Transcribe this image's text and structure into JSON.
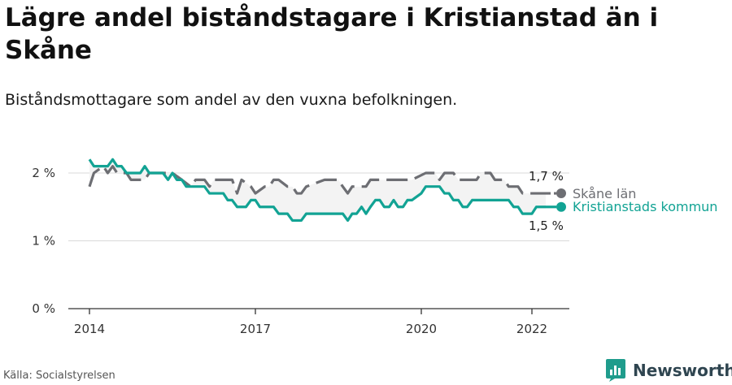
{
  "title": "Lägre andel biståndstagare i Kristianstad än i Skåne",
  "subtitle": "Biståndsmottagare som andel av den vuxna befolkningen.",
  "source": "Källa: Socialstyrelsen",
  "logo": {
    "text": "Newsworthy",
    "icon": "newsworthy-logo-icon"
  },
  "colors": {
    "kristianstad": "#12a394",
    "skane": "#6d6e73",
    "grid": "#d9d9d9",
    "axis": "#333333"
  },
  "chart_data": {
    "type": "line",
    "x_ticks": [
      2014,
      2017,
      2020,
      2022
    ],
    "y_ticks": [
      0,
      1,
      2
    ],
    "y_tick_labels": [
      "0 %",
      "1 %",
      "2 %"
    ],
    "ylim": [
      0,
      2.4
    ],
    "xlim": [
      2013.6,
      2022.7
    ],
    "grid": "horizontal",
    "series": [
      {
        "name": "Skåne län",
        "style": "dashed",
        "end_label": "1,7 %",
        "points": [
          [
            2014.0,
            1.8
          ],
          [
            2014.08,
            2.0
          ],
          [
            2014.25,
            2.1
          ],
          [
            2014.33,
            2.0
          ],
          [
            2014.42,
            2.1
          ],
          [
            2014.5,
            2.0
          ],
          [
            2014.67,
            2.0
          ],
          [
            2014.75,
            1.9
          ],
          [
            2015.0,
            1.9
          ],
          [
            2015.08,
            2.0
          ],
          [
            2015.5,
            2.0
          ],
          [
            2015.67,
            1.9
          ],
          [
            2015.83,
            1.8
          ],
          [
            2015.92,
            1.9
          ],
          [
            2016.08,
            1.9
          ],
          [
            2016.17,
            1.8
          ],
          [
            2016.25,
            1.9
          ],
          [
            2016.58,
            1.9
          ],
          [
            2016.67,
            1.7
          ],
          [
            2016.75,
            1.9
          ],
          [
            2016.92,
            1.8
          ],
          [
            2017.0,
            1.7
          ],
          [
            2017.17,
            1.8
          ],
          [
            2017.25,
            1.8
          ],
          [
            2017.33,
            1.9
          ],
          [
            2017.42,
            1.9
          ],
          [
            2017.58,
            1.8
          ],
          [
            2017.67,
            1.8
          ],
          [
            2017.75,
            1.7
          ],
          [
            2017.83,
            1.7
          ],
          [
            2017.92,
            1.8
          ],
          [
            2018.25,
            1.9
          ],
          [
            2018.5,
            1.9
          ],
          [
            2018.58,
            1.8
          ],
          [
            2018.67,
            1.7
          ],
          [
            2018.75,
            1.8
          ],
          [
            2018.92,
            1.8
          ],
          [
            2019.0,
            1.8
          ],
          [
            2019.08,
            1.9
          ],
          [
            2019.83,
            1.9
          ],
          [
            2020.08,
            2.0
          ],
          [
            2020.25,
            2.0
          ],
          [
            2020.33,
            1.9
          ],
          [
            2020.42,
            2.0
          ],
          [
            2020.58,
            2.0
          ],
          [
            2020.67,
            1.9
          ],
          [
            2021.0,
            1.9
          ],
          [
            2021.08,
            2.0
          ],
          [
            2021.25,
            2.0
          ],
          [
            2021.33,
            1.9
          ],
          [
            2021.5,
            1.9
          ],
          [
            2021.58,
            1.8
          ],
          [
            2021.75,
            1.8
          ],
          [
            2021.83,
            1.7
          ],
          [
            2022.25,
            1.7
          ]
        ]
      },
      {
        "name": "Kristianstads kommun",
        "style": "solid",
        "end_label": "1,5 %",
        "points": [
          [
            2014.0,
            2.2
          ],
          [
            2014.08,
            2.1
          ],
          [
            2014.33,
            2.1
          ],
          [
            2014.42,
            2.2
          ],
          [
            2014.5,
            2.1
          ],
          [
            2014.58,
            2.1
          ],
          [
            2014.67,
            2.0
          ],
          [
            2014.92,
            2.0
          ],
          [
            2015.0,
            2.1
          ],
          [
            2015.08,
            2.0
          ],
          [
            2015.33,
            2.0
          ],
          [
            2015.42,
            1.9
          ],
          [
            2015.5,
            2.0
          ],
          [
            2015.58,
            1.9
          ],
          [
            2015.67,
            1.9
          ],
          [
            2015.75,
            1.8
          ],
          [
            2016.08,
            1.8
          ],
          [
            2016.17,
            1.7
          ],
          [
            2016.42,
            1.7
          ],
          [
            2016.5,
            1.6
          ],
          [
            2016.58,
            1.6
          ],
          [
            2016.67,
            1.5
          ],
          [
            2016.83,
            1.5
          ],
          [
            2016.92,
            1.6
          ],
          [
            2017.0,
            1.6
          ],
          [
            2017.08,
            1.5
          ],
          [
            2017.33,
            1.5
          ],
          [
            2017.42,
            1.4
          ],
          [
            2017.58,
            1.4
          ],
          [
            2017.67,
            1.3
          ],
          [
            2017.83,
            1.3
          ],
          [
            2017.92,
            1.4
          ],
          [
            2018.58,
            1.4
          ],
          [
            2018.67,
            1.3
          ],
          [
            2018.75,
            1.4
          ],
          [
            2018.83,
            1.4
          ],
          [
            2018.92,
            1.5
          ],
          [
            2019.0,
            1.4
          ],
          [
            2019.08,
            1.5
          ],
          [
            2019.17,
            1.6
          ],
          [
            2019.25,
            1.6
          ],
          [
            2019.33,
            1.5
          ],
          [
            2019.42,
            1.5
          ],
          [
            2019.5,
            1.6
          ],
          [
            2019.58,
            1.5
          ],
          [
            2019.67,
            1.5
          ],
          [
            2019.75,
            1.6
          ],
          [
            2019.83,
            1.6
          ],
          [
            2020.0,
            1.7
          ],
          [
            2020.08,
            1.8
          ],
          [
            2020.33,
            1.8
          ],
          [
            2020.42,
            1.7
          ],
          [
            2020.5,
            1.7
          ],
          [
            2020.58,
            1.6
          ],
          [
            2020.67,
            1.6
          ],
          [
            2020.75,
            1.5
          ],
          [
            2020.83,
            1.5
          ],
          [
            2020.92,
            1.6
          ],
          [
            2021.58,
            1.6
          ],
          [
            2021.67,
            1.5
          ],
          [
            2021.75,
            1.5
          ],
          [
            2021.83,
            1.4
          ],
          [
            2022.0,
            1.4
          ],
          [
            2022.08,
            1.5
          ],
          [
            2022.25,
            1.5
          ]
        ]
      }
    ]
  }
}
